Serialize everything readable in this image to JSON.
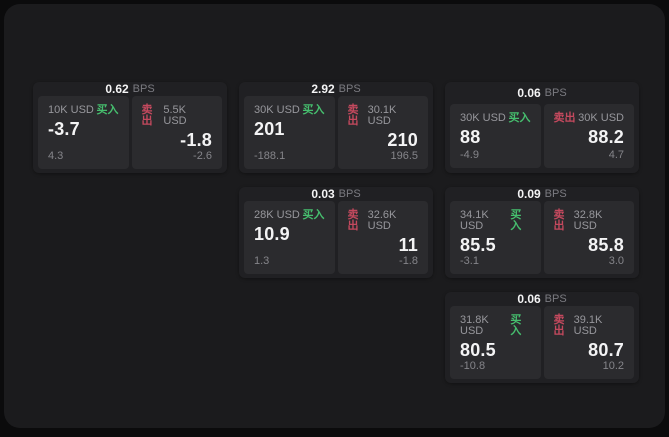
{
  "app": {
    "unit_label": "BPS",
    "buy_label": "买入",
    "sell_label": "卖出"
  },
  "colors": {
    "background": "#0b0b0c",
    "surface": "#1b1b1d",
    "card": "#202023",
    "tile": "#2b2b2e",
    "buy": "#46be6e",
    "sell": "#c4495e"
  },
  "cards": [
    {
      "spread_bps": "0.62",
      "buy": {
        "amount": "10K USD",
        "price": "-3.7",
        "delta": "4.3"
      },
      "sell": {
        "amount": "5.5K USD",
        "price": "-1.8",
        "delta": "-2.6"
      }
    },
    {
      "spread_bps": "2.92",
      "buy": {
        "amount": "30K USD",
        "price": "201",
        "delta": "-188.1"
      },
      "sell": {
        "amount": "30.1K USD",
        "price": "210",
        "delta": "196.5"
      }
    },
    {
      "spread_bps": "0.06",
      "buy": {
        "amount": "30K USD",
        "price": "88",
        "delta": "-4.9"
      },
      "sell": {
        "amount": "30K USD",
        "price": "88.2",
        "delta": "4.7"
      }
    },
    {
      "spread_bps": "0.03",
      "buy": {
        "amount": "28K USD",
        "price": "10.9",
        "delta": "1.3"
      },
      "sell": {
        "amount": "32.6K USD",
        "price": "11",
        "delta": "-1.8"
      }
    },
    {
      "spread_bps": "0.09",
      "buy": {
        "amount": "34.1K USD",
        "price": "85.5",
        "delta": "-3.1"
      },
      "sell": {
        "amount": "32.8K USD",
        "price": "85.8",
        "delta": "3.0"
      }
    },
    {
      "spread_bps": "0.06",
      "buy": {
        "amount": "31.8K USD",
        "price": "80.5",
        "delta": "-10.8"
      },
      "sell": {
        "amount": "39.1K USD",
        "price": "80.7",
        "delta": "10.2"
      }
    }
  ]
}
